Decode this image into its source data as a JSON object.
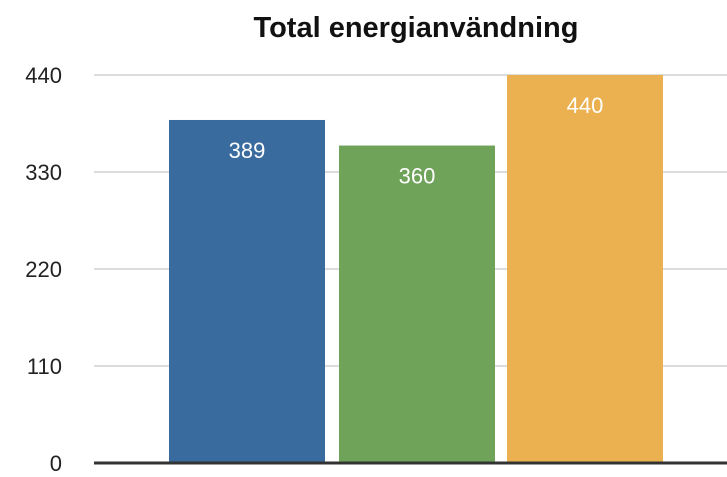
{
  "chart_data": {
    "type": "bar",
    "title": "Total energianvändning",
    "xlabel": "",
    "ylabel": "",
    "ylim": [
      0,
      440
    ],
    "yticks": [
      0,
      110,
      220,
      330,
      440
    ],
    "grid": true,
    "legend": "none",
    "series": [
      {
        "values": [
          389
        ],
        "color": "#3a6b9e"
      },
      {
        "values": [
          360
        ],
        "color": "#6fa35a"
      },
      {
        "values": [
          440
        ],
        "color": "#ebb04f"
      }
    ],
    "data_labels": [
      "389",
      "360",
      "440"
    ]
  }
}
